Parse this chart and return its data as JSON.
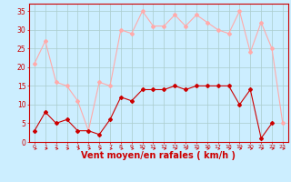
{
  "x": [
    0,
    1,
    2,
    3,
    4,
    5,
    6,
    7,
    8,
    9,
    10,
    11,
    12,
    13,
    14,
    15,
    16,
    17,
    18,
    19,
    20,
    21,
    22,
    23
  ],
  "wind_avg": [
    3,
    8,
    5,
    6,
    3,
    3,
    2,
    6,
    12,
    11,
    14,
    14,
    14,
    15,
    14,
    15,
    15,
    15,
    15,
    10,
    14,
    1,
    5,
    null
  ],
  "wind_gust": [
    21,
    27,
    16,
    15,
    11,
    3,
    16,
    15,
    30,
    29,
    35,
    31,
    31,
    34,
    31,
    34,
    32,
    30,
    29,
    35,
    24,
    32,
    25,
    5
  ],
  "avg_color": "#cc0000",
  "gust_color": "#ffaaaa",
  "bg_color": "#cceeff",
  "grid_color": "#aacccc",
  "xlabel": "Vent moyen/en rafales ( km/h )",
  "ylim": [
    0,
    37
  ],
  "yticks": [
    0,
    5,
    10,
    15,
    20,
    25,
    30,
    35
  ],
  "xlim": [
    -0.5,
    23.5
  ],
  "label_fontsize": 7
}
